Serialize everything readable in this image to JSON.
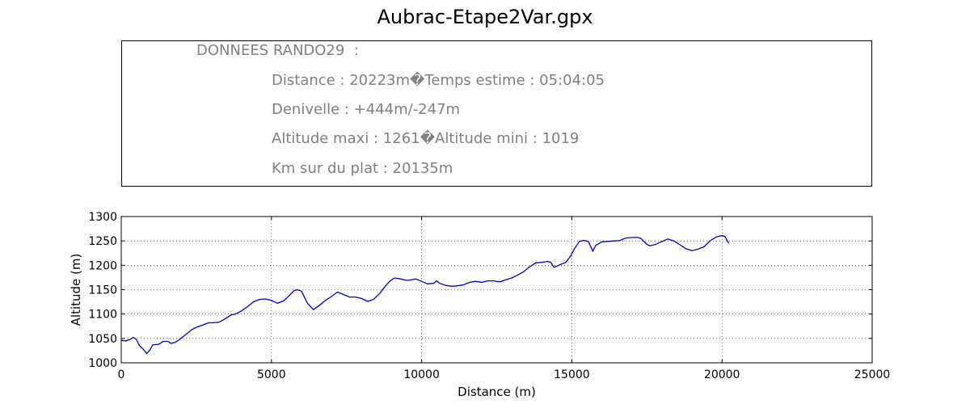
{
  "page": {
    "title": "Aubrac-Etape2Var.gpx"
  },
  "info": {
    "header": "DONNEES RANDO29  :",
    "lines": [
      "Distance : 20223m�Temps estime : 05:04:05",
      "Denivelle : +444m/-247m",
      "Altitude maxi : 1261�Altitude mini : 1019",
      "Km sur du plat : 20135m"
    ]
  },
  "chart_data": {
    "type": "line",
    "title": "",
    "xlabel": "Distance (m)",
    "ylabel": "Altitude (m)",
    "xlim": [
      0,
      25000
    ],
    "ylim": [
      1000,
      1300
    ],
    "xticks": [
      0,
      5000,
      10000,
      15000,
      20000,
      25000
    ],
    "yticks": [
      1000,
      1050,
      1100,
      1150,
      1200,
      1250,
      1300
    ],
    "grid": true,
    "color": "#0000bf",
    "series": [
      {
        "x": [
          0,
          150,
          300,
          400,
          500,
          600,
          700,
          850,
          950,
          1050,
          1250,
          1400,
          1550,
          1650,
          1800,
          1950,
          2150,
          2350,
          2500,
          2700,
          2900,
          3050,
          3250,
          3450,
          3650,
          3800,
          4000,
          4200,
          4400,
          4600,
          4800,
          5000,
          5200,
          5400,
          5600,
          5750,
          5850,
          6000,
          6200,
          6400,
          6600,
          6800,
          7000,
          7200,
          7400,
          7600,
          7800,
          8000,
          8200,
          8400,
          8600,
          8800,
          8950,
          9100,
          9300,
          9500,
          9650,
          9800,
          10000,
          10200,
          10400,
          10500,
          10600,
          10800,
          11000,
          11200,
          11400,
          11600,
          11800,
          12000,
          12200,
          12400,
          12600,
          12800,
          13000,
          13200,
          13400,
          13600,
          13800,
          14000,
          14200,
          14300,
          14400,
          14500,
          14600,
          14800,
          14950,
          15100,
          15250,
          15400,
          15550,
          15700,
          15800,
          16000,
          16200,
          16400,
          16600,
          16800,
          17000,
          17200,
          17300,
          17400,
          17500,
          17600,
          17800,
          18000,
          18200,
          18400,
          18600,
          18800,
          19000,
          19200,
          19400,
          19600,
          19800,
          20000,
          20100,
          20223
        ],
        "y": [
          1046,
          1045,
          1048,
          1052,
          1048,
          1036,
          1030,
          1019,
          1026,
          1037,
          1038,
          1044,
          1044,
          1040,
          1042,
          1048,
          1058,
          1068,
          1073,
          1077,
          1082,
          1082,
          1083,
          1090,
          1098,
          1100,
          1106,
          1115,
          1125,
          1130,
          1131,
          1128,
          1122,
          1127,
          1138,
          1148,
          1150,
          1147,
          1122,
          1109,
          1118,
          1128,
          1136,
          1145,
          1140,
          1135,
          1135,
          1132,
          1126,
          1130,
          1142,
          1158,
          1168,
          1174,
          1172,
          1169,
          1170,
          1172,
          1167,
          1162,
          1163,
          1168,
          1163,
          1159,
          1157,
          1158,
          1160,
          1165,
          1167,
          1165,
          1168,
          1168,
          1166,
          1170,
          1174,
          1180,
          1187,
          1197,
          1205,
          1206,
          1208,
          1206,
          1196,
          1198,
          1201,
          1206,
          1218,
          1235,
          1249,
          1251,
          1249,
          1229,
          1241,
          1248,
          1249,
          1250,
          1251,
          1256,
          1257,
          1257,
          1255,
          1249,
          1243,
          1240,
          1243,
          1249,
          1254,
          1250,
          1242,
          1234,
          1230,
          1233,
          1238,
          1250,
          1258,
          1261,
          1259,
          1245
        ]
      }
    ]
  }
}
